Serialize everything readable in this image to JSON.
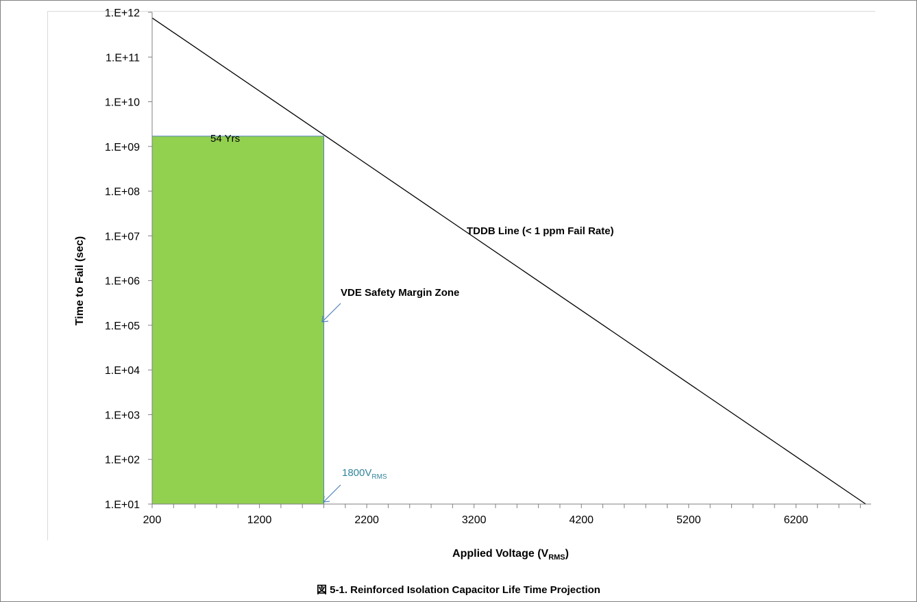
{
  "caption": "図 5-1. Reinforced Isolation Capacitor Life Time Projection",
  "chart_data": {
    "type": "line",
    "title": "",
    "xlabel": {
      "main": "Applied Voltage (V",
      "sub": "RMS",
      "close": ")"
    },
    "ylabel": "Time to Fail (sec)",
    "xlim": [
      200,
      6900
    ],
    "ylim_log10": [
      1,
      12
    ],
    "y_scale": "log",
    "x_ticks": [
      200,
      1200,
      2200,
      3200,
      4200,
      5200,
      6200
    ],
    "x_tick_labels": [
      "200",
      "1200",
      "2200",
      "3200",
      "4200",
      "5200",
      "6200"
    ],
    "y_ticks_log10": [
      1,
      2,
      3,
      4,
      5,
      6,
      7,
      8,
      9,
      10,
      11,
      12
    ],
    "y_tick_labels": [
      "1.E+01",
      "1.E+02",
      "1.E+03",
      "1.E+04",
      "1.E+05",
      "1.E+06",
      "1.E+07",
      "1.E+08",
      "1.E+09",
      "1.E+10",
      "1.E+11",
      "1.E+12"
    ],
    "series": [
      {
        "x": [
          200,
          6850
        ],
        "y": [
          750000000000.0,
          10
        ],
        "color": "#000000"
      }
    ],
    "zone": {
      "x": [
        200,
        1800
      ],
      "y": [
        10,
        1700000000.0
      ],
      "fill": "#92d050",
      "stroke": "#4f81bd"
    },
    "annotations": {
      "years": "54 Yrs",
      "tddb": "TDDB Line (< 1 ppm Fail Rate)",
      "vde": "VDE Safety Margin Zone",
      "voltage": {
        "main": "1800V",
        "sub": "RMS"
      }
    },
    "grid": false
  }
}
